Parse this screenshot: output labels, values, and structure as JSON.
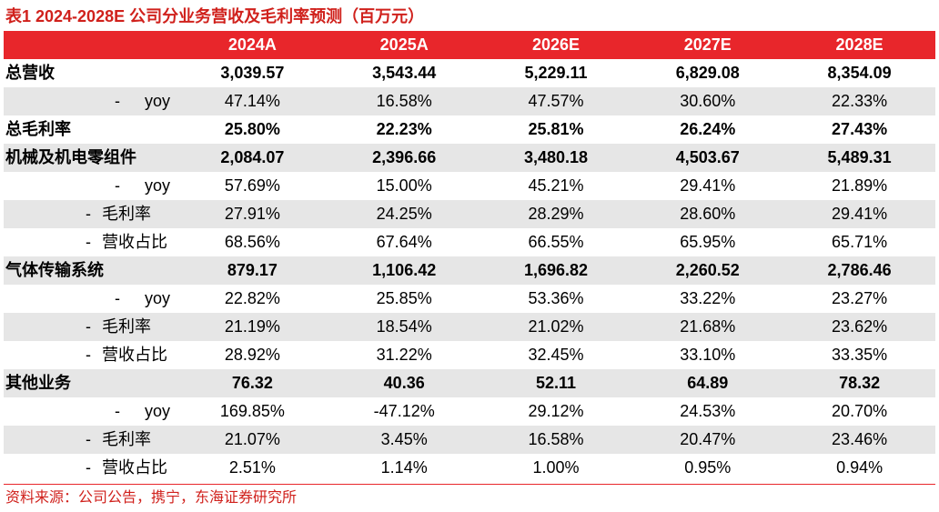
{
  "title": "表1  2024-2028E 公司分业务营收及毛利率预测（百万元）",
  "source": "资料来源：公司公告，携宁，东海证券研究所",
  "colors": {
    "header_bg": "#e8262b",
    "accent_text": "#d0211c",
    "shade_bg": "#e6e6e6"
  },
  "header": {
    "label": "",
    "cols": [
      "2024A",
      "2025A",
      "2026E",
      "2027E",
      "2028E"
    ]
  },
  "rows": [
    {
      "label": "总营收",
      "dash": "",
      "bold": true,
      "shade": false,
      "values": [
        "3,039.57",
        "3,543.44",
        "5,229.11",
        "6,829.08",
        "8,354.09"
      ]
    },
    {
      "label": "yoy",
      "dash": "-",
      "bold": false,
      "shade": true,
      "values": [
        "47.14%",
        "16.58%",
        "47.57%",
        "30.60%",
        "22.33%"
      ]
    },
    {
      "label": "总毛利率",
      "dash": "",
      "bold": true,
      "shade": false,
      "values": [
        "25.80%",
        "22.23%",
        "25.81%",
        "26.24%",
        "27.43%"
      ]
    },
    {
      "label": "机械及机电零组件",
      "dash": "",
      "bold": true,
      "shade": true,
      "values": [
        "2,084.07",
        "2,396.66",
        "3,480.18",
        "4,503.67",
        "5,489.31"
      ]
    },
    {
      "label": "yoy",
      "dash": "-",
      "bold": false,
      "shade": false,
      "values": [
        "57.69%",
        "15.00%",
        "45.21%",
        "29.41%",
        "21.89%"
      ]
    },
    {
      "label": "毛利率",
      "dash": "-",
      "bold": false,
      "shade": true,
      "values": [
        "27.91%",
        "24.25%",
        "28.29%",
        "28.60%",
        "29.41%"
      ]
    },
    {
      "label": "营收占比",
      "dash": "-",
      "bold": false,
      "shade": false,
      "values": [
        "68.56%",
        "67.64%",
        "66.55%",
        "65.95%",
        "65.71%"
      ]
    },
    {
      "label": "气体传输系统",
      "dash": "",
      "bold": true,
      "shade": true,
      "values": [
        "879.17",
        "1,106.42",
        "1,696.82",
        "2,260.52",
        "2,786.46"
      ]
    },
    {
      "label": "yoy",
      "dash": "-",
      "bold": false,
      "shade": false,
      "values": [
        "22.82%",
        "25.85%",
        "53.36%",
        "33.22%",
        "23.27%"
      ]
    },
    {
      "label": "毛利率",
      "dash": "-",
      "bold": false,
      "shade": true,
      "values": [
        "21.19%",
        "18.54%",
        "21.02%",
        "21.68%",
        "23.62%"
      ]
    },
    {
      "label": "营收占比",
      "dash": "-",
      "bold": false,
      "shade": false,
      "values": [
        "28.92%",
        "31.22%",
        "32.45%",
        "33.10%",
        "33.35%"
      ]
    },
    {
      "label": "其他业务",
      "dash": "",
      "bold": true,
      "shade": true,
      "values": [
        "76.32",
        "40.36",
        "52.11",
        "64.89",
        "78.32"
      ]
    },
    {
      "label": "yoy",
      "dash": "-",
      "bold": false,
      "shade": false,
      "values": [
        "169.85%",
        "-47.12%",
        "29.12%",
        "24.53%",
        "20.70%"
      ]
    },
    {
      "label": "毛利率",
      "dash": "-",
      "bold": false,
      "shade": true,
      "values": [
        "21.07%",
        "3.45%",
        "16.58%",
        "20.47%",
        "23.46%"
      ]
    },
    {
      "label": "营收占比",
      "dash": "-",
      "bold": false,
      "shade": false,
      "values": [
        "2.51%",
        "1.14%",
        "1.00%",
        "0.95%",
        "0.94%"
      ]
    }
  ]
}
